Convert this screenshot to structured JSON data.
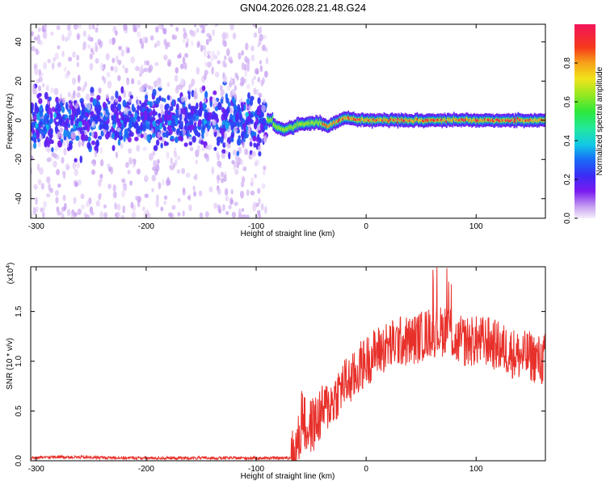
{
  "title": "GN04.2026.028.21.48.G24",
  "chart_data": [
    {
      "type": "heatmap",
      "xlabel": "Height of straight line (km)",
      "ylabel": "Frequency (Hz)",
      "xlim": [
        -305,
        163
      ],
      "ylim": [
        -50,
        49
      ],
      "xticks": [
        -300,
        -200,
        -100,
        0,
        100
      ],
      "yticks": [
        -40,
        -20,
        0,
        20,
        40
      ],
      "colorbar": {
        "label": "Normalized spectral amplitude",
        "range": [
          0,
          1
        ],
        "ticks": [
          0.0,
          0.2,
          0.4,
          0.6,
          0.8
        ],
        "colormap": "rainbow (violet→blue→cyan→green→yellow→orange→red→magenta)"
      },
      "regions": [
        {
          "x_range": [
            -305,
            -90
          ],
          "description": "broadband noise",
          "central_band_hz": [
            -20,
            20
          ],
          "amplitude_range": [
            0.05,
            0.3
          ]
        },
        {
          "x_range": [
            -90,
            163
          ],
          "description": "narrow tone near 0 Hz",
          "band_hz": [
            -3,
            3
          ],
          "amplitude_range": [
            0.4,
            1.0
          ]
        }
      ],
      "tone_center_hz": [
        {
          "x": -85,
          "y": -2
        },
        {
          "x": -75,
          "y": -5
        },
        {
          "x": -60,
          "y": -2
        },
        {
          "x": -45,
          "y": -1
        },
        {
          "x": -35,
          "y": -3
        },
        {
          "x": -20,
          "y": 1
        },
        {
          "x": 0,
          "y": 0
        },
        {
          "x": 40,
          "y": 0
        },
        {
          "x": 80,
          "y": 0
        },
        {
          "x": 100,
          "y": 0
        },
        {
          "x": 130,
          "y": 0
        },
        {
          "x": 163,
          "y": 0
        }
      ]
    },
    {
      "type": "line",
      "xlabel": "Height of straight line (km)",
      "ylabel": "SNR (10 * v/v)",
      "y_multiplier": "(x10",
      "y_multiplier_exp": "4",
      "xlim": [
        -305,
        163
      ],
      "ylim": [
        0,
        1.95
      ],
      "xticks": [
        -300,
        -200,
        -100,
        0,
        100
      ],
      "yticks": [
        0.0,
        0.5,
        1.0,
        1.5
      ],
      "color": "#e8302a",
      "series": [
        {
          "x": [
            -305,
            -280,
            -250,
            -200,
            -150,
            -100,
            -70,
            -65,
            -60,
            -58,
            -55,
            -50,
            -45,
            -40,
            -35,
            -30,
            -25,
            -20,
            -15,
            -10,
            -5,
            0,
            10,
            20,
            30,
            40,
            50,
            60,
            70,
            75,
            80,
            90,
            100,
            110,
            120,
            130,
            140,
            150,
            160,
            163
          ],
          "y": [
            0.02,
            0.04,
            0.03,
            0.02,
            0.02,
            0.02,
            0.02,
            0.05,
            0.25,
            0.55,
            0.3,
            0.35,
            0.4,
            0.5,
            0.55,
            0.6,
            0.7,
            0.78,
            0.8,
            0.85,
            0.95,
            1.0,
            1.1,
            1.15,
            1.2,
            1.2,
            1.25,
            1.3,
            1.3,
            1.4,
            1.2,
            1.2,
            1.2,
            1.2,
            1.15,
            1.1,
            1.05,
            1.05,
            1.0,
            1.05
          ]
        }
      ]
    }
  ]
}
